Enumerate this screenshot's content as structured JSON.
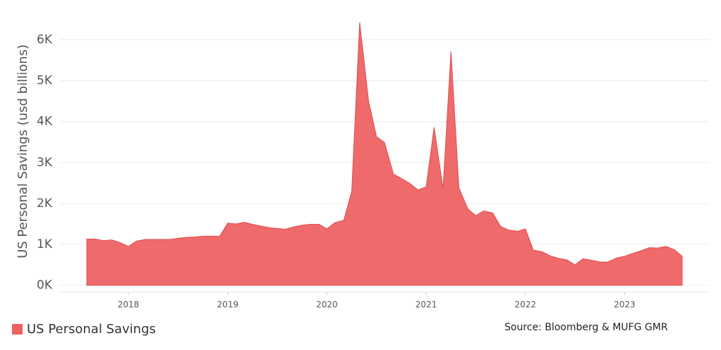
{
  "chart_data": {
    "type": "area",
    "y_label": "US Personal Savings (usd billions)",
    "source": "Source: Bloomberg & MUFG GMR",
    "x": [
      2017.58,
      2017.67,
      2017.75,
      2017.83,
      2017.92,
      2018.0,
      2018.08,
      2018.17,
      2018.25,
      2018.33,
      2018.42,
      2018.5,
      2018.58,
      2018.67,
      2018.75,
      2018.83,
      2018.92,
      2019.0,
      2019.08,
      2019.17,
      2019.25,
      2019.33,
      2019.42,
      2019.5,
      2019.58,
      2019.67,
      2019.75,
      2019.83,
      2019.92,
      2020.0,
      2020.08,
      2020.17,
      2020.25,
      2020.33,
      2020.42,
      2020.5,
      2020.58,
      2020.67,
      2020.75,
      2020.83,
      2020.92,
      2021.0,
      2021.08,
      2021.17,
      2021.25,
      2021.33,
      2021.42,
      2021.5,
      2021.58,
      2021.67,
      2021.75,
      2021.83,
      2021.92,
      2022.0,
      2022.08,
      2022.17,
      2022.25,
      2022.33,
      2022.42,
      2022.5,
      2022.58,
      2022.67,
      2022.75,
      2022.83,
      2022.92,
      2023.0,
      2023.08,
      2023.17,
      2023.25,
      2023.33,
      2023.42,
      2023.5,
      2023.58
    ],
    "series": [
      {
        "name": "US Personal Savings",
        "color": "#ee6262",
        "values": [
          1130,
          1130,
          1090,
          1110,
          1040,
          950,
          1080,
          1120,
          1120,
          1120,
          1120,
          1150,
          1170,
          1180,
          1200,
          1200,
          1200,
          1520,
          1500,
          1540,
          1490,
          1450,
          1410,
          1390,
          1370,
          1430,
          1470,
          1490,
          1490,
          1380,
          1530,
          1590,
          2300,
          6430,
          4500,
          3630,
          3490,
          2720,
          2610,
          2500,
          2330,
          2410,
          3860,
          2370,
          5720,
          2380,
          1870,
          1700,
          1820,
          1770,
          1440,
          1350,
          1320,
          1380,
          860,
          820,
          720,
          660,
          620,
          500,
          650,
          610,
          570,
          570,
          670,
          710,
          780,
          850,
          920,
          910,
          950,
          870,
          710
        ]
      }
    ],
    "xlim": [
      2017.31,
      2023.85
    ],
    "xticks": [
      2018,
      2019,
      2020,
      2021,
      2022,
      2023
    ],
    "ylim": [
      -170,
      6800
    ],
    "yticks": [
      {
        "value": 0,
        "label": "0K"
      },
      {
        "value": 1000,
        "label": "1K"
      },
      {
        "value": 2000,
        "label": "2K"
      },
      {
        "value": 3000,
        "label": "3K"
      },
      {
        "value": 4000,
        "label": "4K"
      },
      {
        "value": 5000,
        "label": "5K"
      },
      {
        "value": 6000,
        "label": "6K"
      }
    ],
    "grid": true,
    "legend": "bottom-left"
  }
}
